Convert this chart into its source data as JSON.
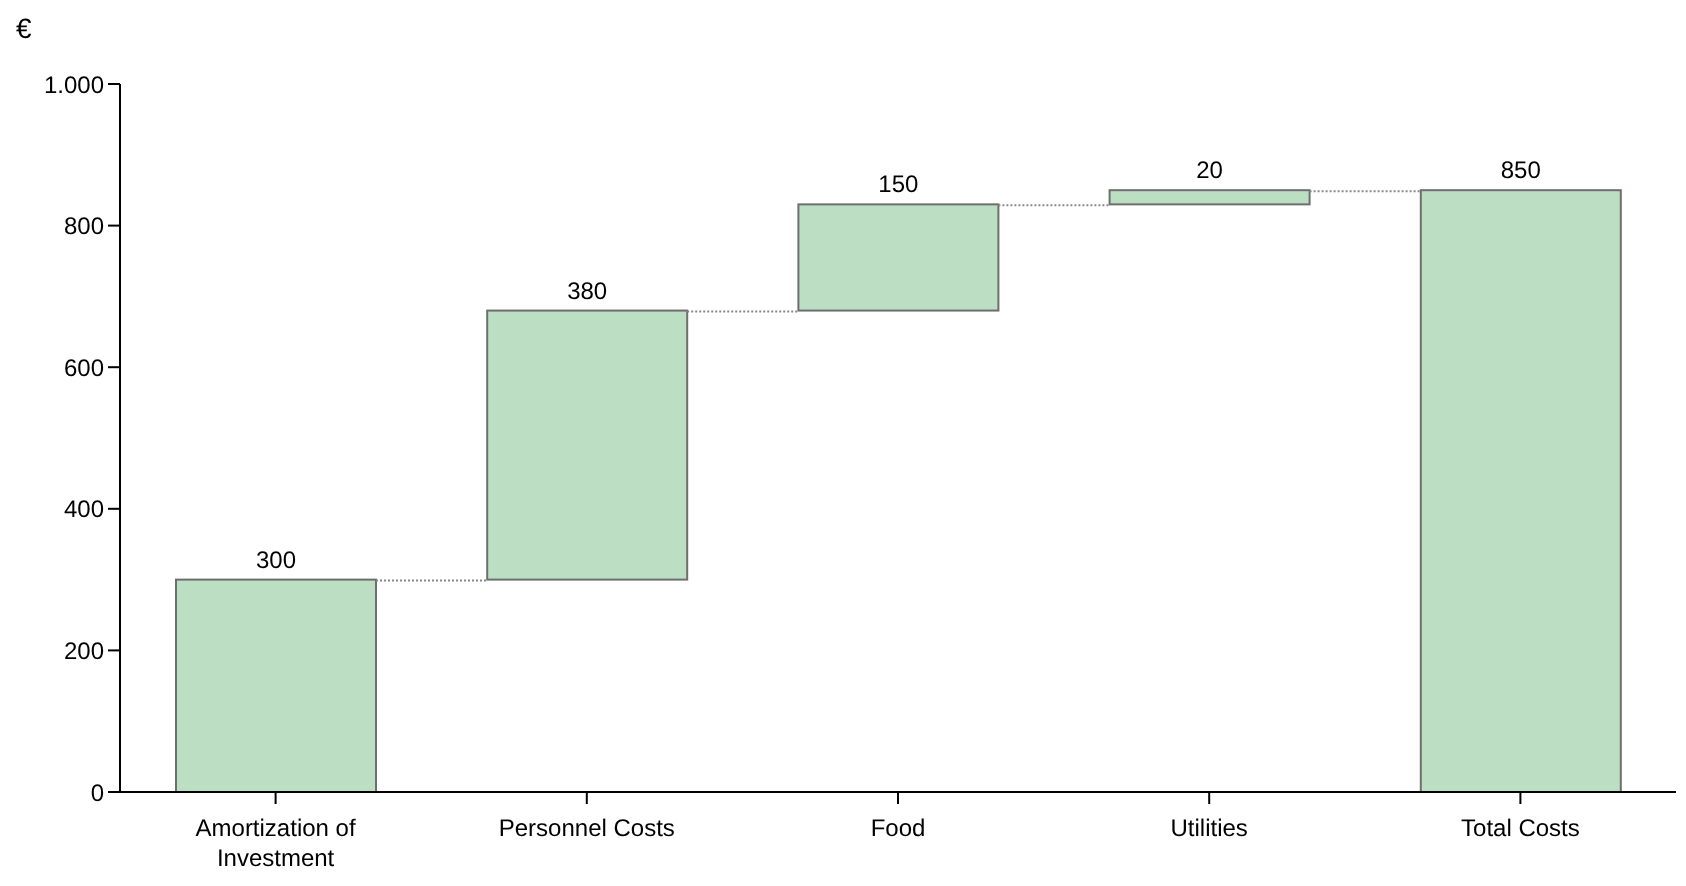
{
  "chart_data": {
    "type": "bar",
    "ylabel": "€",
    "categories": [
      "Amortization of Investment",
      "Personnel Costs",
      "Food",
      "Utilities",
      "Total Costs"
    ],
    "values": [
      300,
      380,
      150,
      20,
      850
    ],
    "base": [
      0,
      300,
      680,
      830,
      0
    ],
    "color": "#bcdfc4",
    "data_labels": true,
    "ylim": [
      0,
      1000
    ],
    "yticks": [
      0,
      200,
      400,
      600,
      800,
      {
        "value": 1000,
        "label": "1.000"
      }
    ],
    "grid": false
  }
}
